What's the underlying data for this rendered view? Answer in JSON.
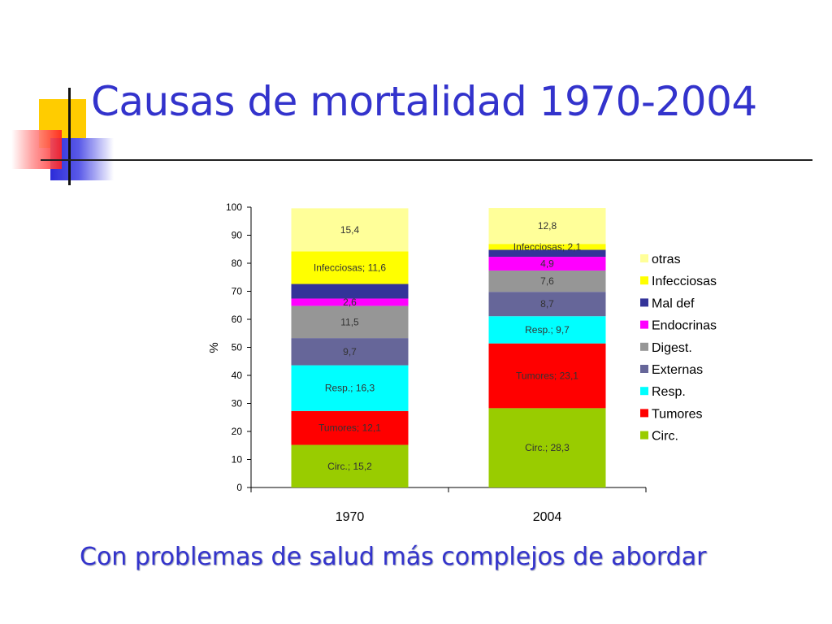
{
  "slide": {
    "title": "Causas de mortalidad 1970-2004",
    "subtitle": "Con problemas de salud más complejos de abordar"
  },
  "chart_data": {
    "type": "bar",
    "stacked": true,
    "categories": [
      "1970",
      "2004"
    ],
    "ylabel": "%",
    "ylim": [
      0,
      100
    ],
    "yticks": [
      0,
      10,
      20,
      30,
      40,
      50,
      60,
      70,
      80,
      90,
      100
    ],
    "legend_position": "right",
    "series": [
      {
        "name": "Circ.",
        "color": "#99cc00",
        "values": [
          15.2,
          28.3
        ],
        "labels": [
          "Circ.; 15,2",
          "Circ.; 28,3"
        ]
      },
      {
        "name": "Tumores",
        "color": "#ff0000",
        "values": [
          12.1,
          23.1
        ],
        "labels": [
          "Tumores; 12,1",
          "Tumores; 23,1"
        ]
      },
      {
        "name": "Resp.",
        "color": "#00ffff",
        "values": [
          16.3,
          9.7
        ],
        "labels": [
          "Resp.; 16,3",
          "Resp.; 9,7"
        ]
      },
      {
        "name": "Externas",
        "color": "#666699",
        "values": [
          9.7,
          8.7
        ],
        "labels": [
          "9,7",
          "8,7"
        ]
      },
      {
        "name": "Digest.",
        "color": "#969696",
        "values": [
          11.5,
          7.6
        ],
        "labels": [
          "11,5",
          "7,6"
        ]
      },
      {
        "name": "Endocrinas",
        "color": "#ff00ff",
        "values": [
          2.6,
          4.9
        ],
        "labels": [
          "2,6",
          "4,9"
        ]
      },
      {
        "name": "Mal def",
        "color": "#333399",
        "values": [
          5.2,
          2.5
        ],
        "labels": [
          "",
          ""
        ]
      },
      {
        "name": "Infecciosas",
        "color": "#ffff00",
        "values": [
          11.6,
          2.1
        ],
        "labels": [
          "Infecciosas; 11,6",
          "Infecciosas; 2,1"
        ]
      },
      {
        "name": "otras",
        "color": "#ffff99",
        "values": [
          15.4,
          12.8
        ],
        "labels": [
          "15,4",
          "12,8"
        ]
      }
    ]
  }
}
